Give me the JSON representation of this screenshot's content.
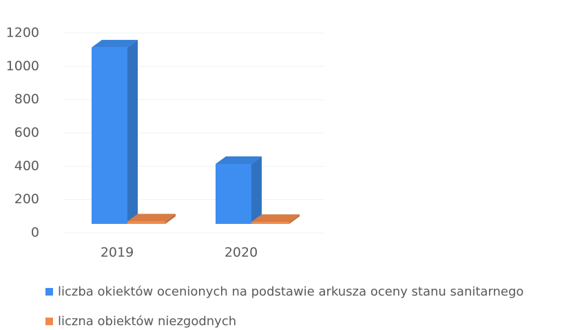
{
  "chart_data": {
    "type": "bar3d",
    "categories": [
      "2019",
      "2020"
    ],
    "series": [
      {
        "name": "liczba okiektów ocenionych na podstawie arkusza oceny stanu sanitarnego",
        "color": "#3d8ef0",
        "values": [
          1060,
          360
        ]
      },
      {
        "name": "liczna obiektów niezgodnych",
        "color": "#f08a4b",
        "values": [
          15,
          12
        ]
      }
    ],
    "ylim": [
      0,
      1200
    ],
    "yticks": [
      0,
      200,
      400,
      600,
      800,
      1000,
      1200
    ],
    "grid": true,
    "legend": "bottom"
  }
}
